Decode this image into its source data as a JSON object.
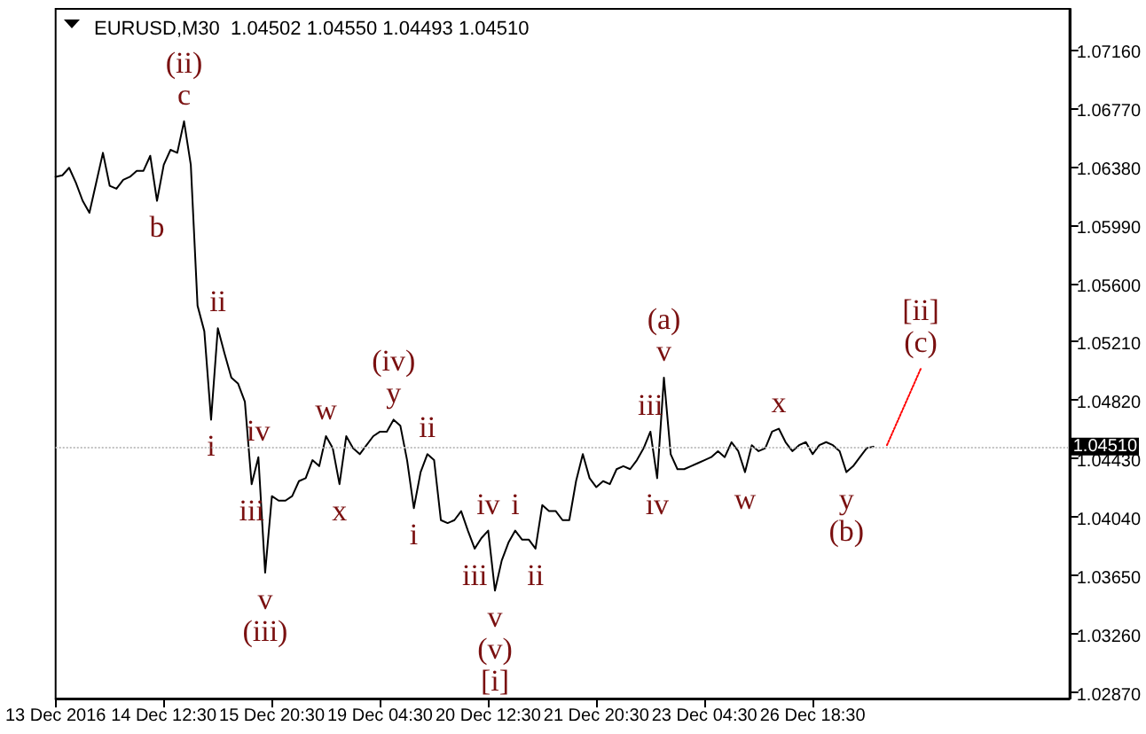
{
  "chart_data": {
    "type": "line",
    "title": "EURUSD,M30  1.04502 1.04550 1.04493 1.04510",
    "categories": [
      "13 Dec 2016",
      null,
      null,
      null,
      null,
      null,
      null,
      null,
      null,
      null,
      null,
      null,
      null,
      null,
      null,
      null,
      "14 Dec 12:30",
      null,
      null,
      null,
      null,
      null,
      null,
      null,
      null,
      null,
      null,
      null,
      null,
      null,
      null,
      null,
      "15 Dec 20:30",
      null,
      null,
      null,
      null,
      null,
      null,
      null,
      null,
      null,
      null,
      null,
      null,
      null,
      null,
      null,
      "19 Dec 04:30",
      null,
      null,
      null,
      null,
      null,
      null,
      null,
      null,
      null,
      null,
      null,
      null,
      null,
      null,
      null,
      "20 Dec 12:30",
      null,
      null,
      null,
      null,
      null,
      null,
      null,
      null,
      null,
      null,
      null,
      null,
      null,
      null,
      null,
      "21 Dec 20:30",
      null,
      null,
      null,
      null,
      null,
      null,
      null,
      null,
      null,
      null,
      null,
      null,
      null,
      null,
      null,
      "23 Dec 04:30",
      null,
      null,
      null,
      null,
      null,
      null,
      null,
      null,
      null,
      null,
      null,
      null,
      null,
      null,
      null,
      "26 Dec 18:30",
      null,
      null,
      null,
      null,
      null,
      null,
      null,
      null,
      null,
      null,
      null,
      null,
      null,
      null,
      null,
      null,
      null,
      null,
      null,
      null,
      null,
      null,
      null,
      null,
      null,
      null,
      null,
      null,
      null,
      null,
      null,
      null,
      null,
      null,
      null,
      null,
      null,
      null
    ],
    "ylim": [
      1.0283,
      1.0743
    ],
    "yticks": [
      {
        "value": 1.0287,
        "label": "1.02870"
      },
      {
        "value": 1.0326,
        "label": "1.03260"
      },
      {
        "value": 1.0365,
        "label": "1.03650"
      },
      {
        "value": 1.0404,
        "label": "1.04040"
      },
      {
        "value": 1.0443,
        "label": "1.04430"
      },
      {
        "value": 1.0482,
        "label": "1.04820"
      },
      {
        "value": 1.0521,
        "label": "1.05210"
      },
      {
        "value": 1.056,
        "label": "1.05600"
      },
      {
        "value": 1.0599,
        "label": "1.05990"
      },
      {
        "value": 1.0638,
        "label": "1.06380"
      },
      {
        "value": 1.0677,
        "label": "1.06770"
      },
      {
        "value": 1.0716,
        "label": "1.07160"
      }
    ],
    "grid": false,
    "marker": "none",
    "series": [
      {
        "color": "#000000",
        "line_style": "solid",
        "values": [
          1.0631,
          1.0632,
          1.0637,
          1.0627,
          1.0615,
          1.0607,
          1.0627,
          1.0647,
          1.0625,
          1.0623,
          1.0629,
          1.0631,
          1.0635,
          1.0635,
          1.0645,
          1.0615,
          1.0639,
          1.0649,
          1.0647,
          1.0668,
          1.0639,
          1.0545,
          1.0528,
          1.0469,
          1.053,
          1.0513,
          1.0497,
          1.0493,
          1.0481,
          1.0426,
          1.0444,
          1.0367,
          1.0418,
          1.0415,
          1.0415,
          1.0418,
          1.0428,
          1.043,
          1.0442,
          1.0438,
          1.0458,
          1.045,
          1.0426,
          1.0458,
          1.045,
          1.0446,
          1.0452,
          1.0458,
          1.0461,
          1.0461,
          1.0469,
          1.0465,
          1.0442,
          1.041,
          1.0434,
          1.0446,
          1.0442,
          1.0402,
          1.04,
          1.0402,
          1.0408,
          1.0395,
          1.0383,
          1.039,
          1.0395,
          1.0355,
          1.0375,
          1.0387,
          1.0395,
          1.0389,
          1.0389,
          1.0383,
          1.0412,
          1.0408,
          1.0408,
          1.0402,
          1.0402,
          1.0428,
          1.0446,
          1.043,
          1.0424,
          1.0428,
          1.0426,
          1.0436,
          1.0438,
          1.0436,
          1.0442,
          1.045,
          1.0461,
          1.043,
          1.0497,
          1.0446,
          1.0436,
          1.0436,
          1.0438,
          1.044,
          1.0442,
          1.0444,
          1.0448,
          1.0444,
          1.0454,
          1.0448,
          1.0434,
          1.0452,
          1.0448,
          1.045,
          1.0461,
          1.0463,
          1.0454,
          1.0448,
          1.0452,
          1.0454,
          1.0446,
          1.0452,
          1.0454,
          1.0452,
          1.0448,
          1.0434,
          1.0438,
          1.0444,
          1.045,
          1.0451,
          null,
          null,
          null,
          null,
          null,
          null,
          null,
          null,
          null,
          null,
          null,
          null,
          null,
          null,
          null,
          null,
          null,
          null,
          null,
          null,
          null,
          null,
          null,
          null,
          null,
          null,
          null,
          null,
          null
        ],
        "value_labels": [
          null,
          null,
          null,
          null,
          null,
          null,
          null,
          null,
          null,
          null,
          null,
          null,
          null,
          null,
          null,
          "b",
          null,
          null,
          null,
          "(ii)\nc",
          null,
          null,
          null,
          "i",
          "ii",
          null,
          null,
          null,
          null,
          "iii",
          "iv",
          "v\n(iii)",
          null,
          null,
          null,
          null,
          null,
          null,
          null,
          null,
          "w",
          null,
          "x",
          null,
          null,
          null,
          null,
          null,
          null,
          null,
          "(iv)\ny",
          null,
          null,
          "i",
          null,
          "ii",
          null,
          null,
          null,
          null,
          null,
          null,
          "iii",
          null,
          "iv",
          "v\n(v)\n[i]",
          null,
          null,
          "i",
          null,
          null,
          "ii",
          null,
          null,
          null,
          null,
          null,
          null,
          null,
          null,
          null,
          null,
          null,
          null,
          null,
          null,
          null,
          null,
          "iii",
          "iv",
          "(a)\nv",
          null,
          null,
          null,
          null,
          null,
          null,
          null,
          null,
          null,
          null,
          null,
          "w",
          null,
          null,
          null,
          null,
          "x",
          null,
          null,
          null,
          null,
          null,
          null,
          null,
          null,
          null,
          "y\n(b)",
          null,
          null,
          null,
          null,
          null,
          null,
          null,
          null,
          null,
          null,
          null,
          null,
          null,
          null,
          null,
          null,
          null,
          null,
          null,
          null,
          null,
          null,
          null,
          null,
          null,
          null,
          null,
          null,
          null,
          null,
          null,
          null,
          null
        ]
      },
      {
        "color": "#ff0000",
        "line_style": "dotted",
        "values": [
          null,
          null,
          null,
          null,
          null,
          null,
          null,
          null,
          null,
          null,
          null,
          null,
          null,
          null,
          null,
          null,
          null,
          null,
          null,
          null,
          null,
          null,
          null,
          null,
          null,
          null,
          null,
          null,
          null,
          null,
          null,
          null,
          null,
          null,
          null,
          null,
          null,
          null,
          null,
          null,
          null,
          null,
          null,
          null,
          null,
          null,
          null,
          null,
          null,
          null,
          null,
          null,
          null,
          null,
          null,
          null,
          null,
          null,
          null,
          null,
          null,
          null,
          null,
          null,
          null,
          null,
          null,
          null,
          null,
          null,
          null,
          null,
          null,
          null,
          null,
          null,
          null,
          null,
          null,
          null,
          null,
          null,
          null,
          null,
          null,
          null,
          null,
          null,
          null,
          null,
          null,
          null,
          null,
          null,
          null,
          null,
          null,
          null,
          null,
          null,
          null,
          null,
          null,
          null,
          null,
          null,
          null,
          null,
          null,
          null,
          null,
          null,
          null,
          null,
          null,
          null,
          null,
          null,
          null,
          null,
          null,
          null,
          null,
          1.0452,
          null,
          null,
          null,
          null,
          1.0503,
          null,
          null,
          null,
          null,
          null,
          null,
          null,
          null,
          null,
          null,
          null,
          null,
          null,
          null,
          null,
          null,
          null,
          null,
          null,
          null,
          null,
          null
        ],
        "value_labels": [
          null,
          null,
          null,
          null,
          null,
          null,
          null,
          null,
          null,
          null,
          null,
          null,
          null,
          null,
          null,
          null,
          null,
          null,
          null,
          null,
          null,
          null,
          null,
          null,
          null,
          null,
          null,
          null,
          null,
          null,
          null,
          null,
          null,
          null,
          null,
          null,
          null,
          null,
          null,
          null,
          null,
          null,
          null,
          null,
          null,
          null,
          null,
          null,
          null,
          null,
          null,
          null,
          null,
          null,
          null,
          null,
          null,
          null,
          null,
          null,
          null,
          null,
          null,
          null,
          null,
          null,
          null,
          null,
          null,
          null,
          null,
          null,
          null,
          null,
          null,
          null,
          null,
          null,
          null,
          null,
          null,
          null,
          null,
          null,
          null,
          null,
          null,
          null,
          null,
          null,
          null,
          null,
          null,
          null,
          null,
          null,
          null,
          null,
          null,
          null,
          null,
          null,
          null,
          null,
          null,
          null,
          null,
          null,
          null,
          null,
          null,
          null,
          null,
          null,
          null,
          null,
          null,
          null,
          null,
          null,
          null,
          null,
          null,
          null,
          null,
          null,
          null,
          null,
          "[ii]\n(c)",
          null,
          null,
          null,
          null,
          null,
          null,
          null,
          null,
          null,
          null,
          null,
          null,
          null,
          null,
          null,
          null,
          null,
          null,
          null,
          null,
          null,
          null
        ]
      }
    ],
    "ref_lines": [
      {
        "axis": "y",
        "value": 1.0451,
        "label": "1.04510",
        "color": "#c0c0c0",
        "line_style": "dotted"
      }
    ]
  }
}
